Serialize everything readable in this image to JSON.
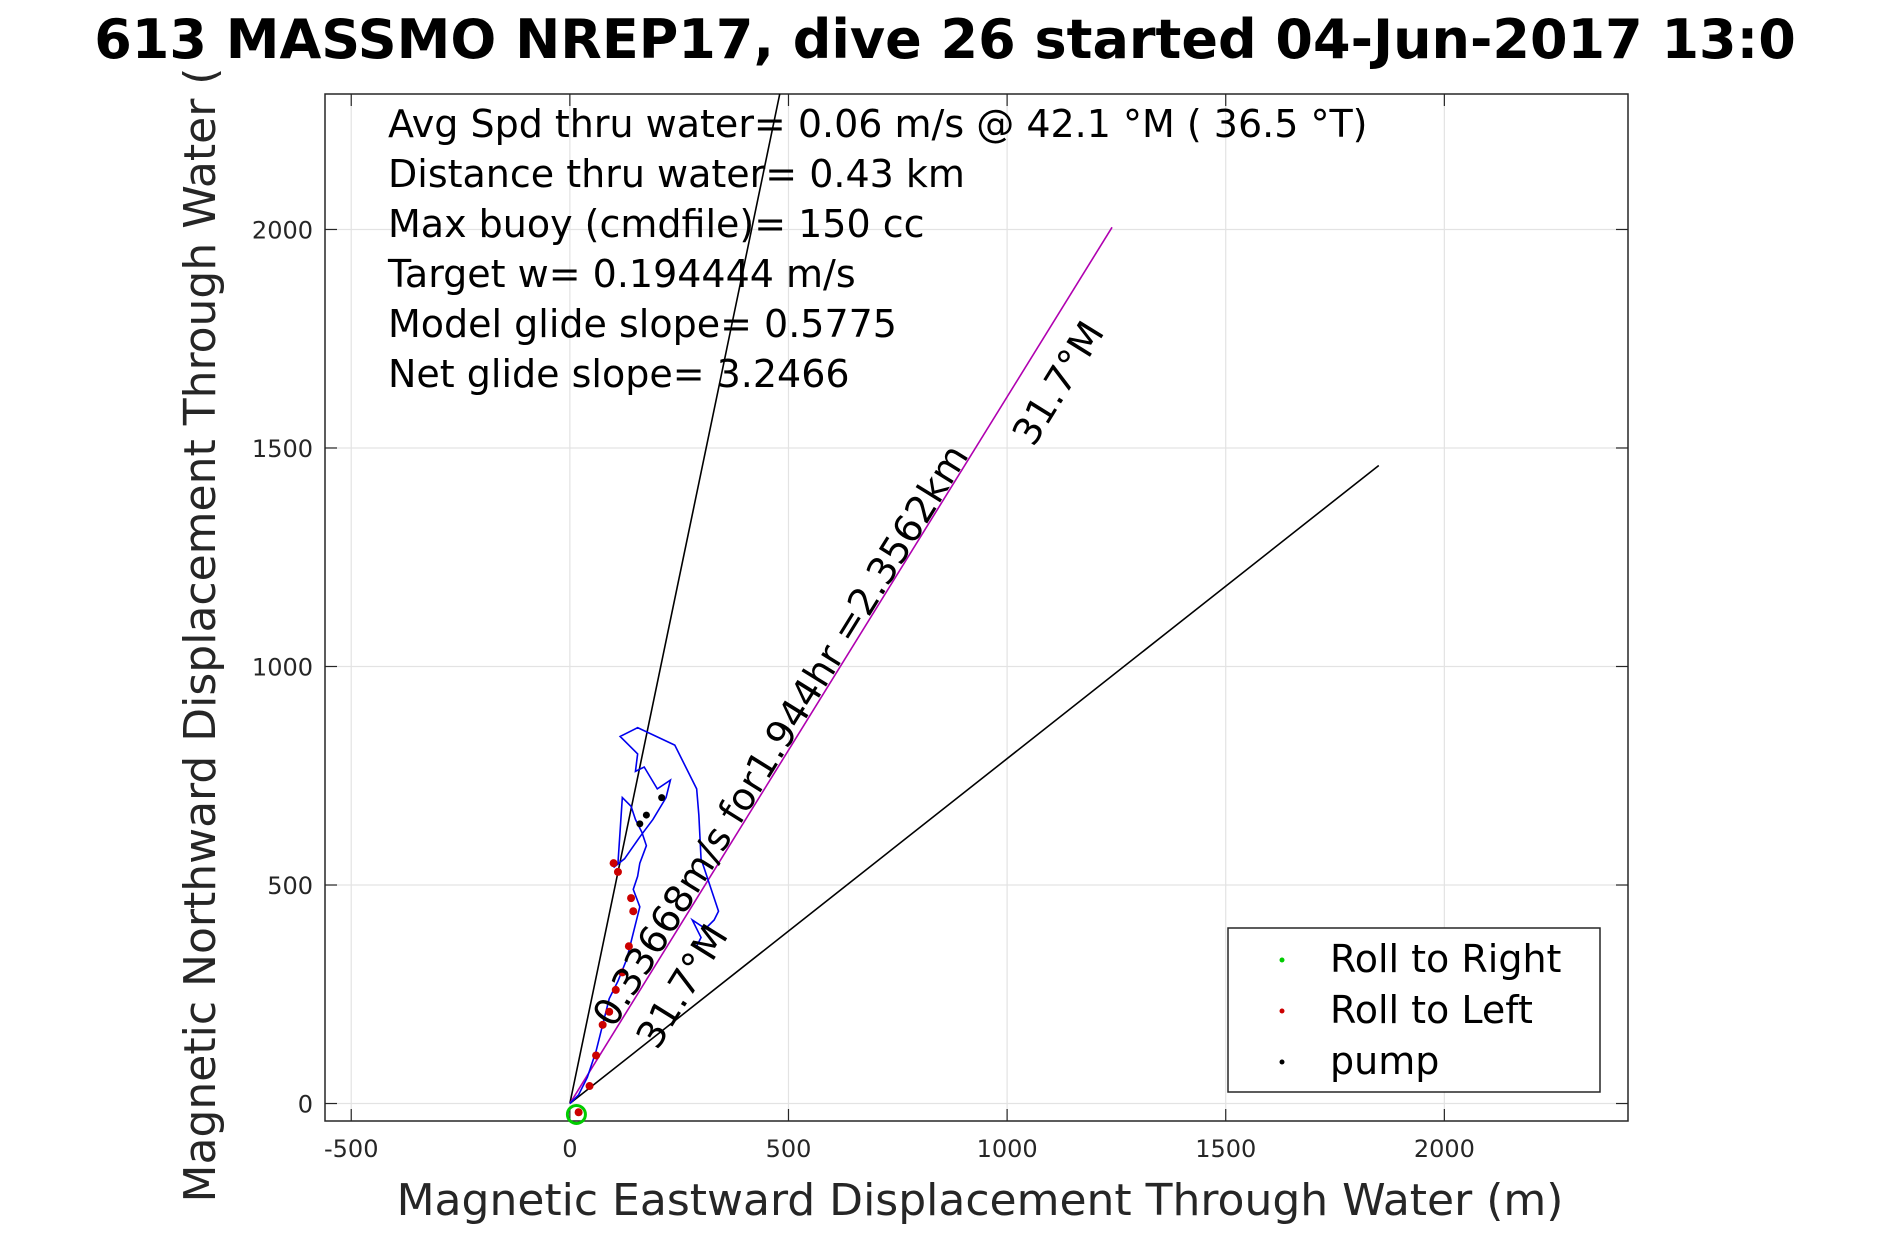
{
  "chart_data": {
    "type": "line",
    "title": "613 MASSMO NREP17, dive 26 started 04-Jun-2017 13:0",
    "xlabel": "Magnetic Eastward Displacement Through Water (m)",
    "ylabel": "Magnetic Northward Displacement Through Water (",
    "xlim": [
      -560,
      2420
    ],
    "ylim": [
      -40,
      2310
    ],
    "xticks": [
      -500,
      0,
      500,
      1000,
      1500,
      2000
    ],
    "xtick_labels": [
      "-500",
      "0",
      "500",
      "1000",
      "1500",
      "2000"
    ],
    "yticks": [
      0,
      500,
      1000,
      1500,
      2000
    ],
    "ytick_labels": [
      "0",
      "500",
      "1000",
      "1500",
      "2000"
    ],
    "grid": true,
    "stats": [
      "Avg Spd thru water=  0.06 m/s @  42.1 °M ( 36.5 °T)",
      "Distance thru water=  0.43 km",
      "Max buoy (cmdfile)= 150 cc",
      "Target w= 0.194444 m/s",
      "Model glide slope= 0.5775",
      "Net glide slope= 3.2466"
    ],
    "lines": [
      {
        "name": "",
        "color": "#000000",
        "x": [
          0,
          480
        ],
        "y": [
          0,
          2310
        ]
      },
      {
        "name": "",
        "color": "#000000",
        "x": [
          0,
          1850
        ],
        "y": [
          0,
          1460
        ]
      },
      {
        "name": "",
        "color": "#b000b0",
        "x": [
          0,
          1240
        ],
        "y": [
          0,
          2005
        ]
      }
    ],
    "track": {
      "color": "#0000ee",
      "x": [
        0,
        20,
        40,
        60,
        75,
        90,
        110,
        130,
        140,
        150,
        160,
        145,
        155,
        160,
        175,
        165,
        150,
        140,
        120,
        110,
        100,
        125,
        160,
        190,
        220,
        230,
        200,
        170,
        150,
        155,
        115,
        155,
        240,
        290,
        295,
        300,
        320,
        340,
        330,
        310,
        280,
        300,
        290
      ],
      "y": [
        0,
        20,
        60,
        120,
        180,
        240,
        280,
        330,
        370,
        410,
        450,
        490,
        520,
        550,
        590,
        620,
        650,
        680,
        700,
        550,
        540,
        560,
        610,
        650,
        700,
        740,
        720,
        770,
        760,
        800,
        840,
        860,
        820,
        720,
        660,
        560,
        500,
        440,
        420,
        400,
        420,
        380,
        360
      ]
    },
    "pump_points": {
      "x": [
        160,
        175,
        210
      ],
      "y": [
        640,
        660,
        700
      ]
    },
    "roll_left_points": {
      "x": [
        20,
        45,
        60,
        75,
        90,
        105,
        120,
        135,
        145,
        140,
        110,
        100
      ],
      "y": [
        -20,
        40,
        110,
        180,
        210,
        260,
        300,
        360,
        440,
        470,
        530,
        550
      ]
    },
    "start_marker": {
      "x": [
        15
      ],
      "y": [
        -25
      ]
    },
    "annotations": [
      {
        "text": "0.33668m/s for1.944hr =2.3562km",
        "x": 100,
        "y": 170,
        "angle": -58.2
      },
      {
        "text": "31.7°M",
        "x": 1060,
        "y": 1500,
        "angle": -58.2
      },
      {
        "text": "31.7°M",
        "x": 200,
        "y": 120,
        "angle": -58.2
      }
    ],
    "legend": {
      "position": "bottom-right",
      "entries": [
        {
          "label": "Roll to Right",
          "color": "#00cc00"
        },
        {
          "label": "Roll to Left",
          "color": "#cc0000"
        },
        {
          "label": "pump",
          "color": "#000000"
        }
      ]
    }
  }
}
